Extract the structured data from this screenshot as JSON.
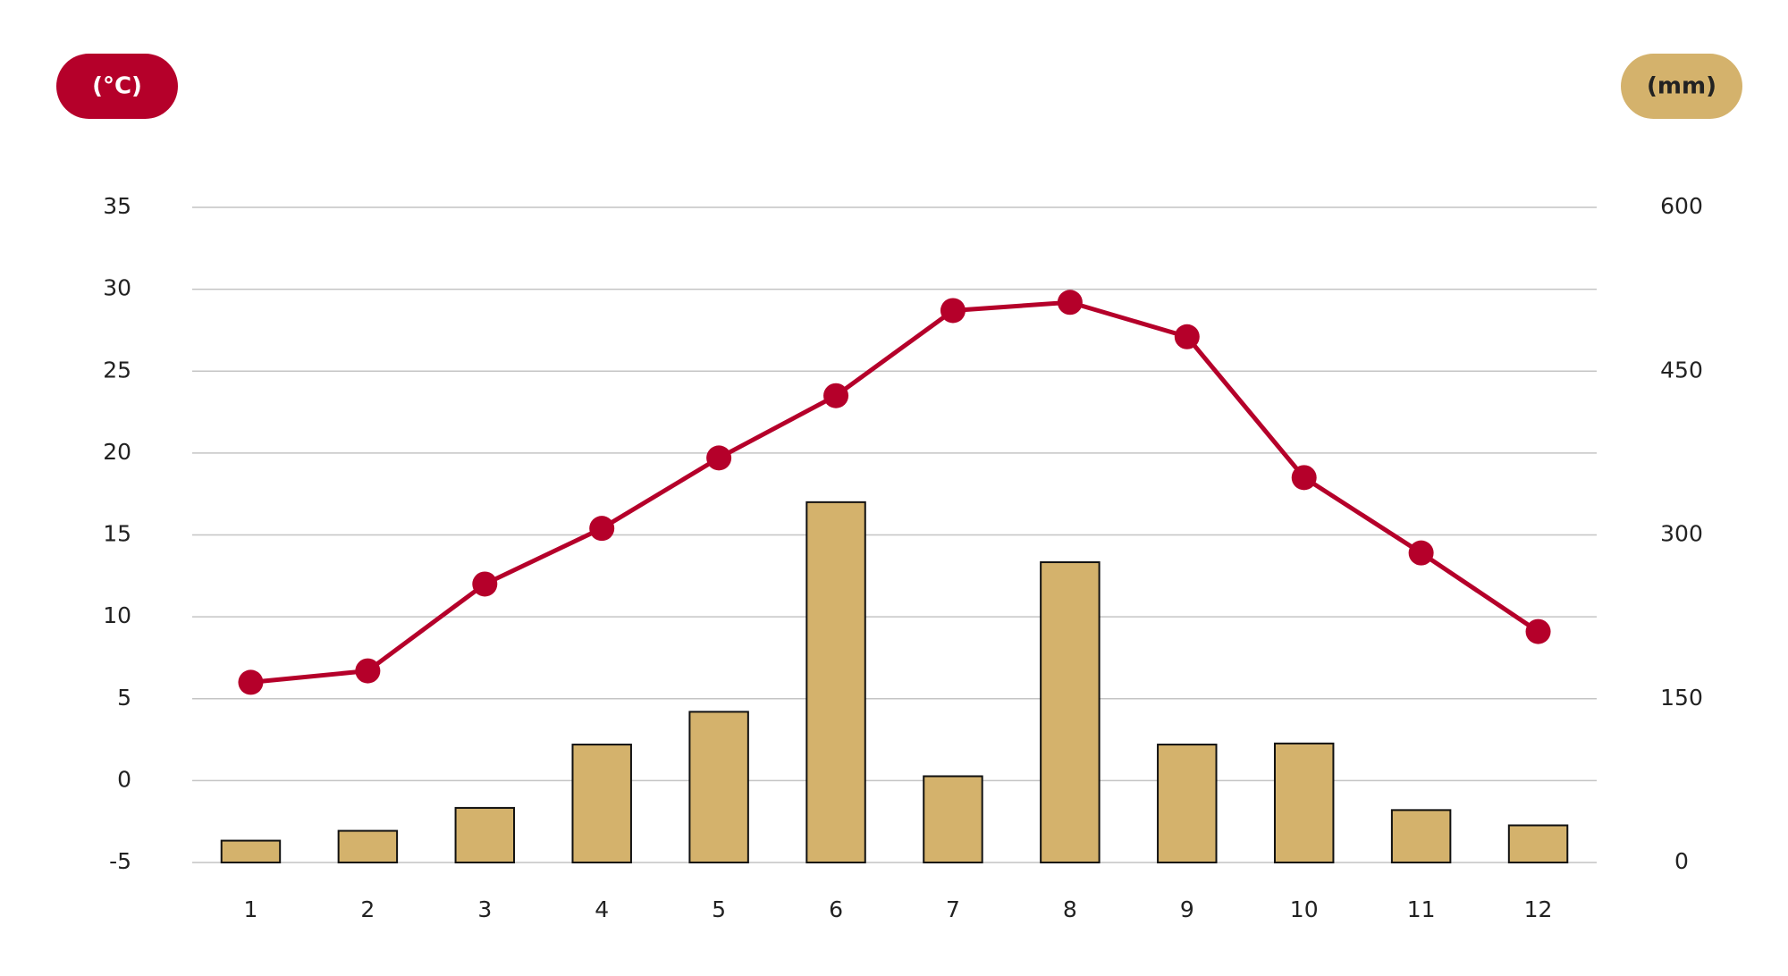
{
  "chart_data": {
    "type": "bar-line",
    "categories": [
      "1",
      "2",
      "3",
      "4",
      "5",
      "6",
      "7",
      "8",
      "9",
      "10",
      "11",
      "12"
    ],
    "series": [
      {
        "name": "(°C)",
        "type": "line",
        "color": "#b5002a",
        "axis": "y",
        "values": [
          6.0,
          6.7,
          12.0,
          15.4,
          19.7,
          23.5,
          28.7,
          29.2,
          27.1,
          18.5,
          13.9,
          9.1
        ]
      },
      {
        "name": "(mm)",
        "type": "bar",
        "color": "#d4b26c",
        "axis": "y2",
        "values": [
          20,
          29,
          50,
          108,
          138,
          330,
          79,
          275,
          108,
          109,
          48,
          34
        ]
      }
    ],
    "ylim": [
      -5,
      35
    ],
    "yticks": [
      -5,
      0,
      5,
      10,
      15,
      20,
      25,
      30,
      35
    ],
    "y2lim": [
      0,
      600
    ],
    "y2ticks": [
      0,
      150,
      300,
      450,
      600
    ],
    "grid": true
  }
}
